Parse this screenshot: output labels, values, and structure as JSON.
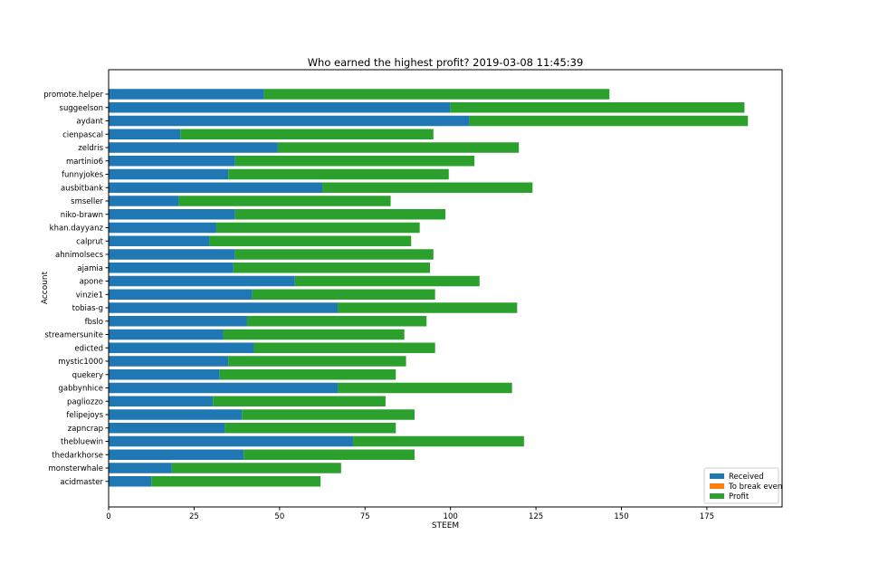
{
  "chart_data": {
    "type": "bar",
    "orientation": "horizontal",
    "stacked": true,
    "title": "Who earned the highest profit? 2019-03-08 11:45:39",
    "xlabel": "STEEM",
    "ylabel": "Account",
    "xlim": [
      0,
      197
    ],
    "xticks": [
      0,
      25,
      50,
      75,
      100,
      125,
      150,
      175
    ],
    "grid": false,
    "legend_position": "lower-right",
    "categories": [
      "promote.helper",
      "suggeelson",
      "aydant",
      "cienpascal",
      "zeldris",
      "martinio6",
      "funnyjokes",
      "ausbitbank",
      "smseller",
      "niko-brawn",
      "khan.dayyanz",
      "calprut",
      "ahnimolsecs",
      "ajamia",
      "apone",
      "vinzie1",
      "tobias-g",
      "fbslo",
      "streamersunite",
      "edicted",
      "mystic1000",
      "quekery",
      "gabbynhice",
      "pagliozzo",
      "felipejoys",
      "zapncrap",
      "thebluewin",
      "thedarkhorse",
      "monsterwhale",
      "acidmaster"
    ],
    "series": [
      {
        "name": "Received",
        "color": "#1f77b4",
        "values": [
          45.5,
          100,
          105.5,
          21,
          49.5,
          37,
          35,
          62.5,
          20.5,
          37,
          31.5,
          29.5,
          37,
          36.5,
          54.5,
          42,
          67,
          40.5,
          33.5,
          42.5,
          35,
          32.5,
          67,
          30.5,
          39,
          34,
          71.5,
          39.5,
          18.5,
          12.5
        ]
      },
      {
        "name": "To break even",
        "color": "#ff7f0e",
        "values": [
          0,
          0,
          0,
          0,
          0,
          0,
          0,
          0,
          0,
          0,
          0,
          0,
          0,
          0,
          0,
          0,
          0,
          0,
          0,
          0,
          0,
          0,
          0,
          0,
          0,
          0,
          0,
          0,
          0,
          0
        ]
      },
      {
        "name": "Profit",
        "color": "#2ca02c",
        "values": [
          101,
          86,
          81.5,
          74,
          70.5,
          70,
          64.5,
          61.5,
          62,
          61.5,
          59.5,
          59,
          58,
          57.5,
          54,
          53.5,
          52.5,
          52.5,
          53,
          53,
          52,
          51.5,
          51,
          50.5,
          50.5,
          50,
          50,
          50,
          49.5,
          49.5
        ]
      }
    ]
  }
}
